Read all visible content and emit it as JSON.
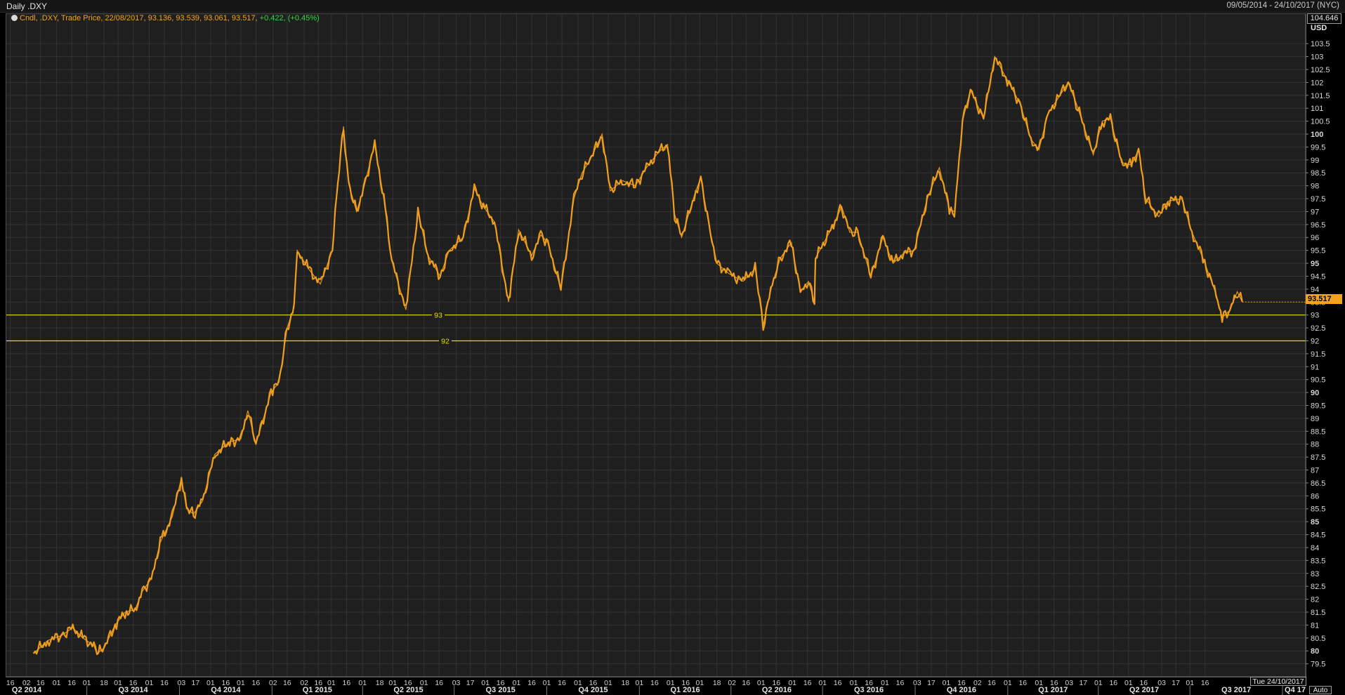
{
  "header": {
    "title": "Daily .DXY",
    "date_range": "09/05/2014 - 24/10/2017 (NYC)"
  },
  "legend": {
    "ticker_text": "Cndl, .DXY, Trade Price, 22/08/2017, 93.136, 93.539, 93.061, 93.517,",
    "change_text": "+0.422, (+0.45%)"
  },
  "axis": {
    "top_value": "104.646",
    "currency": "USD",
    "last_price": "93.517",
    "auto_label": "Auto",
    "end_date": "Tue 24/10/2017"
  },
  "colors": {
    "background": "#1f1f1f",
    "grid": "#333333",
    "price": "#f5a21d",
    "hline": "#e0e000",
    "change_positive": "#35d640"
  },
  "chart_data": {
    "type": "line",
    "style": "candlestick-like daily price trace",
    "title": "Daily .DXY",
    "ylabel": "USD",
    "ylim": [
      79.0,
      104.646
    ],
    "y_ticks": [
      79.5,
      80,
      80.5,
      81,
      81.5,
      82,
      82.5,
      83,
      83.5,
      84,
      84.5,
      85,
      85.5,
      86,
      86.5,
      87,
      87.5,
      88,
      88.5,
      89,
      89.5,
      90,
      90.5,
      91,
      91.5,
      92,
      92.5,
      93,
      93.5,
      94,
      94.5,
      95,
      95.5,
      96,
      96.5,
      97,
      97.5,
      98,
      98.5,
      99,
      99.5,
      100,
      100.5,
      101,
      101.5,
      102,
      102.5,
      103,
      103.5
    ],
    "y_ticks_bold": [
      80,
      85,
      90,
      95,
      100
    ],
    "x_range": [
      "2014-05-09",
      "2017-10-24"
    ],
    "x_tick_labels": [
      {
        "date": "2014-04-16",
        "label": "16"
      },
      {
        "date": "2014-05-02",
        "label": "02"
      },
      {
        "date": "2014-05-16",
        "label": "16"
      },
      {
        "date": "2014-06-01",
        "label": "01"
      },
      {
        "date": "2014-06-16",
        "label": "16"
      },
      {
        "date": "2014-07-01",
        "label": "01"
      },
      {
        "date": "2014-07-18",
        "label": "18"
      },
      {
        "date": "2014-08-01",
        "label": "01"
      },
      {
        "date": "2014-08-16",
        "label": "16"
      },
      {
        "date": "2014-09-01",
        "label": "01"
      },
      {
        "date": "2014-09-16",
        "label": "16"
      },
      {
        "date": "2014-10-03",
        "label": "03"
      },
      {
        "date": "2014-10-17",
        "label": "17"
      },
      {
        "date": "2014-11-01",
        "label": "01"
      },
      {
        "date": "2014-11-16",
        "label": "16"
      },
      {
        "date": "2014-12-01",
        "label": "01"
      },
      {
        "date": "2014-12-16",
        "label": "16"
      },
      {
        "date": "2015-01-02",
        "label": "02"
      },
      {
        "date": "2015-01-16",
        "label": "16"
      },
      {
        "date": "2015-02-02",
        "label": "02"
      },
      {
        "date": "2015-02-16",
        "label": "16"
      },
      {
        "date": "2015-03-01",
        "label": "01"
      },
      {
        "date": "2015-03-16",
        "label": "16"
      },
      {
        "date": "2015-04-01",
        "label": "01"
      },
      {
        "date": "2015-04-18",
        "label": "18"
      },
      {
        "date": "2015-05-01",
        "label": "01"
      },
      {
        "date": "2015-05-16",
        "label": "16"
      },
      {
        "date": "2015-06-01",
        "label": "01"
      },
      {
        "date": "2015-06-16",
        "label": "16"
      },
      {
        "date": "2015-07-03",
        "label": "03"
      },
      {
        "date": "2015-07-17",
        "label": "17"
      },
      {
        "date": "2015-08-01",
        "label": "01"
      },
      {
        "date": "2015-08-16",
        "label": "16"
      },
      {
        "date": "2015-09-01",
        "label": "01"
      },
      {
        "date": "2015-09-16",
        "label": "16"
      },
      {
        "date": "2015-10-01",
        "label": "01"
      },
      {
        "date": "2015-10-16",
        "label": "16"
      },
      {
        "date": "2015-11-01",
        "label": "01"
      },
      {
        "date": "2015-11-16",
        "label": "16"
      },
      {
        "date": "2015-12-01",
        "label": "01"
      },
      {
        "date": "2015-12-18",
        "label": "18"
      },
      {
        "date": "2016-01-01",
        "label": "01"
      },
      {
        "date": "2016-01-16",
        "label": "16"
      },
      {
        "date": "2016-02-01",
        "label": "01"
      },
      {
        "date": "2016-02-16",
        "label": "16"
      },
      {
        "date": "2016-03-01",
        "label": "01"
      },
      {
        "date": "2016-03-18",
        "label": "18"
      },
      {
        "date": "2016-04-02",
        "label": "02"
      },
      {
        "date": "2016-04-16",
        "label": "16"
      },
      {
        "date": "2016-05-01",
        "label": "01"
      },
      {
        "date": "2016-05-16",
        "label": "16"
      },
      {
        "date": "2016-06-01",
        "label": "01"
      },
      {
        "date": "2016-06-16",
        "label": "16"
      },
      {
        "date": "2016-07-01",
        "label": "01"
      },
      {
        "date": "2016-07-16",
        "label": "16"
      },
      {
        "date": "2016-08-01",
        "label": "01"
      },
      {
        "date": "2016-08-16",
        "label": "16"
      },
      {
        "date": "2016-09-01",
        "label": "01"
      },
      {
        "date": "2016-09-16",
        "label": "16"
      },
      {
        "date": "2016-10-03",
        "label": "03"
      },
      {
        "date": "2016-10-17",
        "label": "17"
      },
      {
        "date": "2016-11-01",
        "label": "01"
      },
      {
        "date": "2016-11-16",
        "label": "16"
      },
      {
        "date": "2016-12-02",
        "label": "02"
      },
      {
        "date": "2016-12-16",
        "label": "16"
      },
      {
        "date": "2017-01-01",
        "label": "01"
      },
      {
        "date": "2017-01-16",
        "label": "16"
      },
      {
        "date": "2017-02-01",
        "label": "01"
      },
      {
        "date": "2017-02-16",
        "label": "16"
      },
      {
        "date": "2017-03-03",
        "label": "03"
      },
      {
        "date": "2017-03-17",
        "label": "17"
      },
      {
        "date": "2017-04-01",
        "label": "01"
      },
      {
        "date": "2017-04-16",
        "label": "16"
      },
      {
        "date": "2017-05-01",
        "label": "01"
      },
      {
        "date": "2017-05-16",
        "label": "16"
      },
      {
        "date": "2017-06-03",
        "label": "03"
      },
      {
        "date": "2017-06-17",
        "label": "17"
      },
      {
        "date": "2017-07-01",
        "label": "01"
      },
      {
        "date": "2017-07-16",
        "label": "16"
      }
    ],
    "quarter_labels": [
      "Q2 2014",
      "Q3 2014",
      "Q4 2014",
      "Q1 2015",
      "Q2 2015",
      "Q3 2015",
      "Q4 2015",
      "Q1 2016",
      "Q2 2016",
      "Q3 2016",
      "Q4 2016",
      "Q1 2017",
      "Q2 2017",
      "Q3 2017",
      "Q4 17"
    ],
    "horizontal_lines": [
      {
        "value": 93,
        "label": "93"
      },
      {
        "value": 92,
        "label": "92"
      }
    ],
    "series": [
      {
        "values": [
          [
            "2014-05-09",
            79.9
          ],
          [
            "2014-05-23",
            80.4
          ],
          [
            "2014-06-06",
            80.6
          ],
          [
            "2014-06-17",
            80.9
          ],
          [
            "2014-06-27",
            80.5
          ],
          [
            "2014-07-08",
            80.2
          ],
          [
            "2014-07-11",
            79.9
          ],
          [
            "2014-07-18",
            80.1
          ],
          [
            "2014-07-29",
            81.0
          ],
          [
            "2014-08-08",
            81.5
          ],
          [
            "2014-08-18",
            81.6
          ],
          [
            "2014-08-25",
            82.3
          ],
          [
            "2014-09-03",
            82.8
          ],
          [
            "2014-09-12",
            84.2
          ],
          [
            "2014-09-24",
            85.2
          ],
          [
            "2014-10-03",
            86.7
          ],
          [
            "2014-10-08",
            85.5
          ],
          [
            "2014-10-15",
            85.3
          ],
          [
            "2014-10-24",
            85.8
          ],
          [
            "2014-11-05",
            87.6
          ],
          [
            "2014-11-20",
            88.1
          ],
          [
            "2014-12-01",
            88.2
          ],
          [
            "2014-12-08",
            89.3
          ],
          [
            "2014-12-16",
            88.0
          ],
          [
            "2014-12-31",
            90.0
          ],
          [
            "2015-01-08",
            90.4
          ],
          [
            "2015-01-16",
            92.5
          ],
          [
            "2015-01-23",
            93.3
          ],
          [
            "2015-01-26",
            95.5
          ],
          [
            "2015-02-06",
            94.8
          ],
          [
            "2015-02-18",
            94.2
          ],
          [
            "2015-03-02",
            95.5
          ],
          [
            "2015-03-06",
            97.5
          ],
          [
            "2015-03-13",
            100.3
          ],
          [
            "2015-03-18",
            98.1
          ],
          [
            "2015-03-26",
            97.0
          ],
          [
            "2015-04-02",
            97.9
          ],
          [
            "2015-04-13",
            99.6
          ],
          [
            "2015-04-22",
            97.5
          ],
          [
            "2015-04-30",
            95.1
          ],
          [
            "2015-05-14",
            93.2
          ],
          [
            "2015-05-26",
            97.0
          ],
          [
            "2015-06-05",
            95.3
          ],
          [
            "2015-06-17",
            94.5
          ],
          [
            "2015-06-26",
            95.5
          ],
          [
            "2015-07-10",
            96.0
          ],
          [
            "2015-07-21",
            97.9
          ],
          [
            "2015-07-30",
            97.2
          ],
          [
            "2015-08-10",
            96.6
          ],
          [
            "2015-08-24",
            93.5
          ],
          [
            "2015-09-03",
            96.3
          ],
          [
            "2015-09-16",
            95.3
          ],
          [
            "2015-09-25",
            96.1
          ],
          [
            "2015-10-02",
            95.8
          ],
          [
            "2015-10-15",
            94.0
          ],
          [
            "2015-10-28",
            97.5
          ],
          [
            "2015-11-05",
            98.5
          ],
          [
            "2015-11-13",
            99.0
          ],
          [
            "2015-11-25",
            100.0
          ],
          [
            "2015-12-03",
            97.8
          ],
          [
            "2015-12-15",
            98.2
          ],
          [
            "2015-12-28",
            98.0
          ],
          [
            "2016-01-08",
            98.7
          ],
          [
            "2016-01-20",
            99.3
          ],
          [
            "2016-01-29",
            99.6
          ],
          [
            "2016-02-05",
            96.9
          ],
          [
            "2016-02-12",
            96.0
          ],
          [
            "2016-02-26",
            97.8
          ],
          [
            "2016-03-02",
            98.3
          ],
          [
            "2016-03-10",
            96.5
          ],
          [
            "2016-03-18",
            95.0
          ],
          [
            "2016-03-30",
            94.6
          ],
          [
            "2016-04-13",
            94.3
          ],
          [
            "2016-04-25",
            94.8
          ],
          [
            "2016-05-03",
            92.6
          ],
          [
            "2016-05-12",
            94.2
          ],
          [
            "2016-05-20",
            95.2
          ],
          [
            "2016-05-31",
            95.8
          ],
          [
            "2016-06-09",
            93.9
          ],
          [
            "2016-06-17",
            94.3
          ],
          [
            "2016-06-23",
            93.5
          ],
          [
            "2016-06-24",
            95.2
          ],
          [
            "2016-07-12",
            96.5
          ],
          [
            "2016-07-20",
            97.2
          ],
          [
            "2016-07-28",
            96.2
          ],
          [
            "2016-08-05",
            96.2
          ],
          [
            "2016-08-18",
            94.5
          ],
          [
            "2016-08-30",
            96.0
          ],
          [
            "2016-09-09",
            95.0
          ],
          [
            "2016-09-20",
            95.4
          ],
          [
            "2016-09-30",
            95.5
          ],
          [
            "2016-10-13",
            97.5
          ],
          [
            "2016-10-25",
            98.7
          ],
          [
            "2016-11-04",
            97.1
          ],
          [
            "2016-11-09",
            97.0
          ],
          [
            "2016-11-17",
            100.5
          ],
          [
            "2016-11-25",
            101.7
          ],
          [
            "2016-12-08",
            100.6
          ],
          [
            "2016-12-19",
            103.0
          ],
          [
            "2016-12-30",
            102.2
          ],
          [
            "2017-01-13",
            101.2
          ],
          [
            "2017-01-24",
            99.8
          ],
          [
            "2017-02-01",
            99.4
          ],
          [
            "2017-02-10",
            100.8
          ],
          [
            "2017-02-22",
            101.5
          ],
          [
            "2017-03-02",
            102.0
          ],
          [
            "2017-03-10",
            101.2
          ],
          [
            "2017-03-27",
            99.2
          ],
          [
            "2017-04-05",
            100.5
          ],
          [
            "2017-04-13",
            100.6
          ],
          [
            "2017-04-24",
            98.9
          ],
          [
            "2017-05-04",
            98.8
          ],
          [
            "2017-05-11",
            99.4
          ],
          [
            "2017-05-18",
            97.5
          ],
          [
            "2017-05-31",
            96.8
          ],
          [
            "2017-06-09",
            97.4
          ],
          [
            "2017-06-23",
            97.5
          ],
          [
            "2017-07-03",
            96.2
          ],
          [
            "2017-07-14",
            95.2
          ],
          [
            "2017-07-27",
            93.8
          ],
          [
            "2017-08-02",
            92.9
          ],
          [
            "2017-08-10",
            93.2
          ],
          [
            "2017-08-17",
            93.9
          ],
          [
            "2017-08-22",
            93.5
          ]
        ]
      }
    ]
  }
}
